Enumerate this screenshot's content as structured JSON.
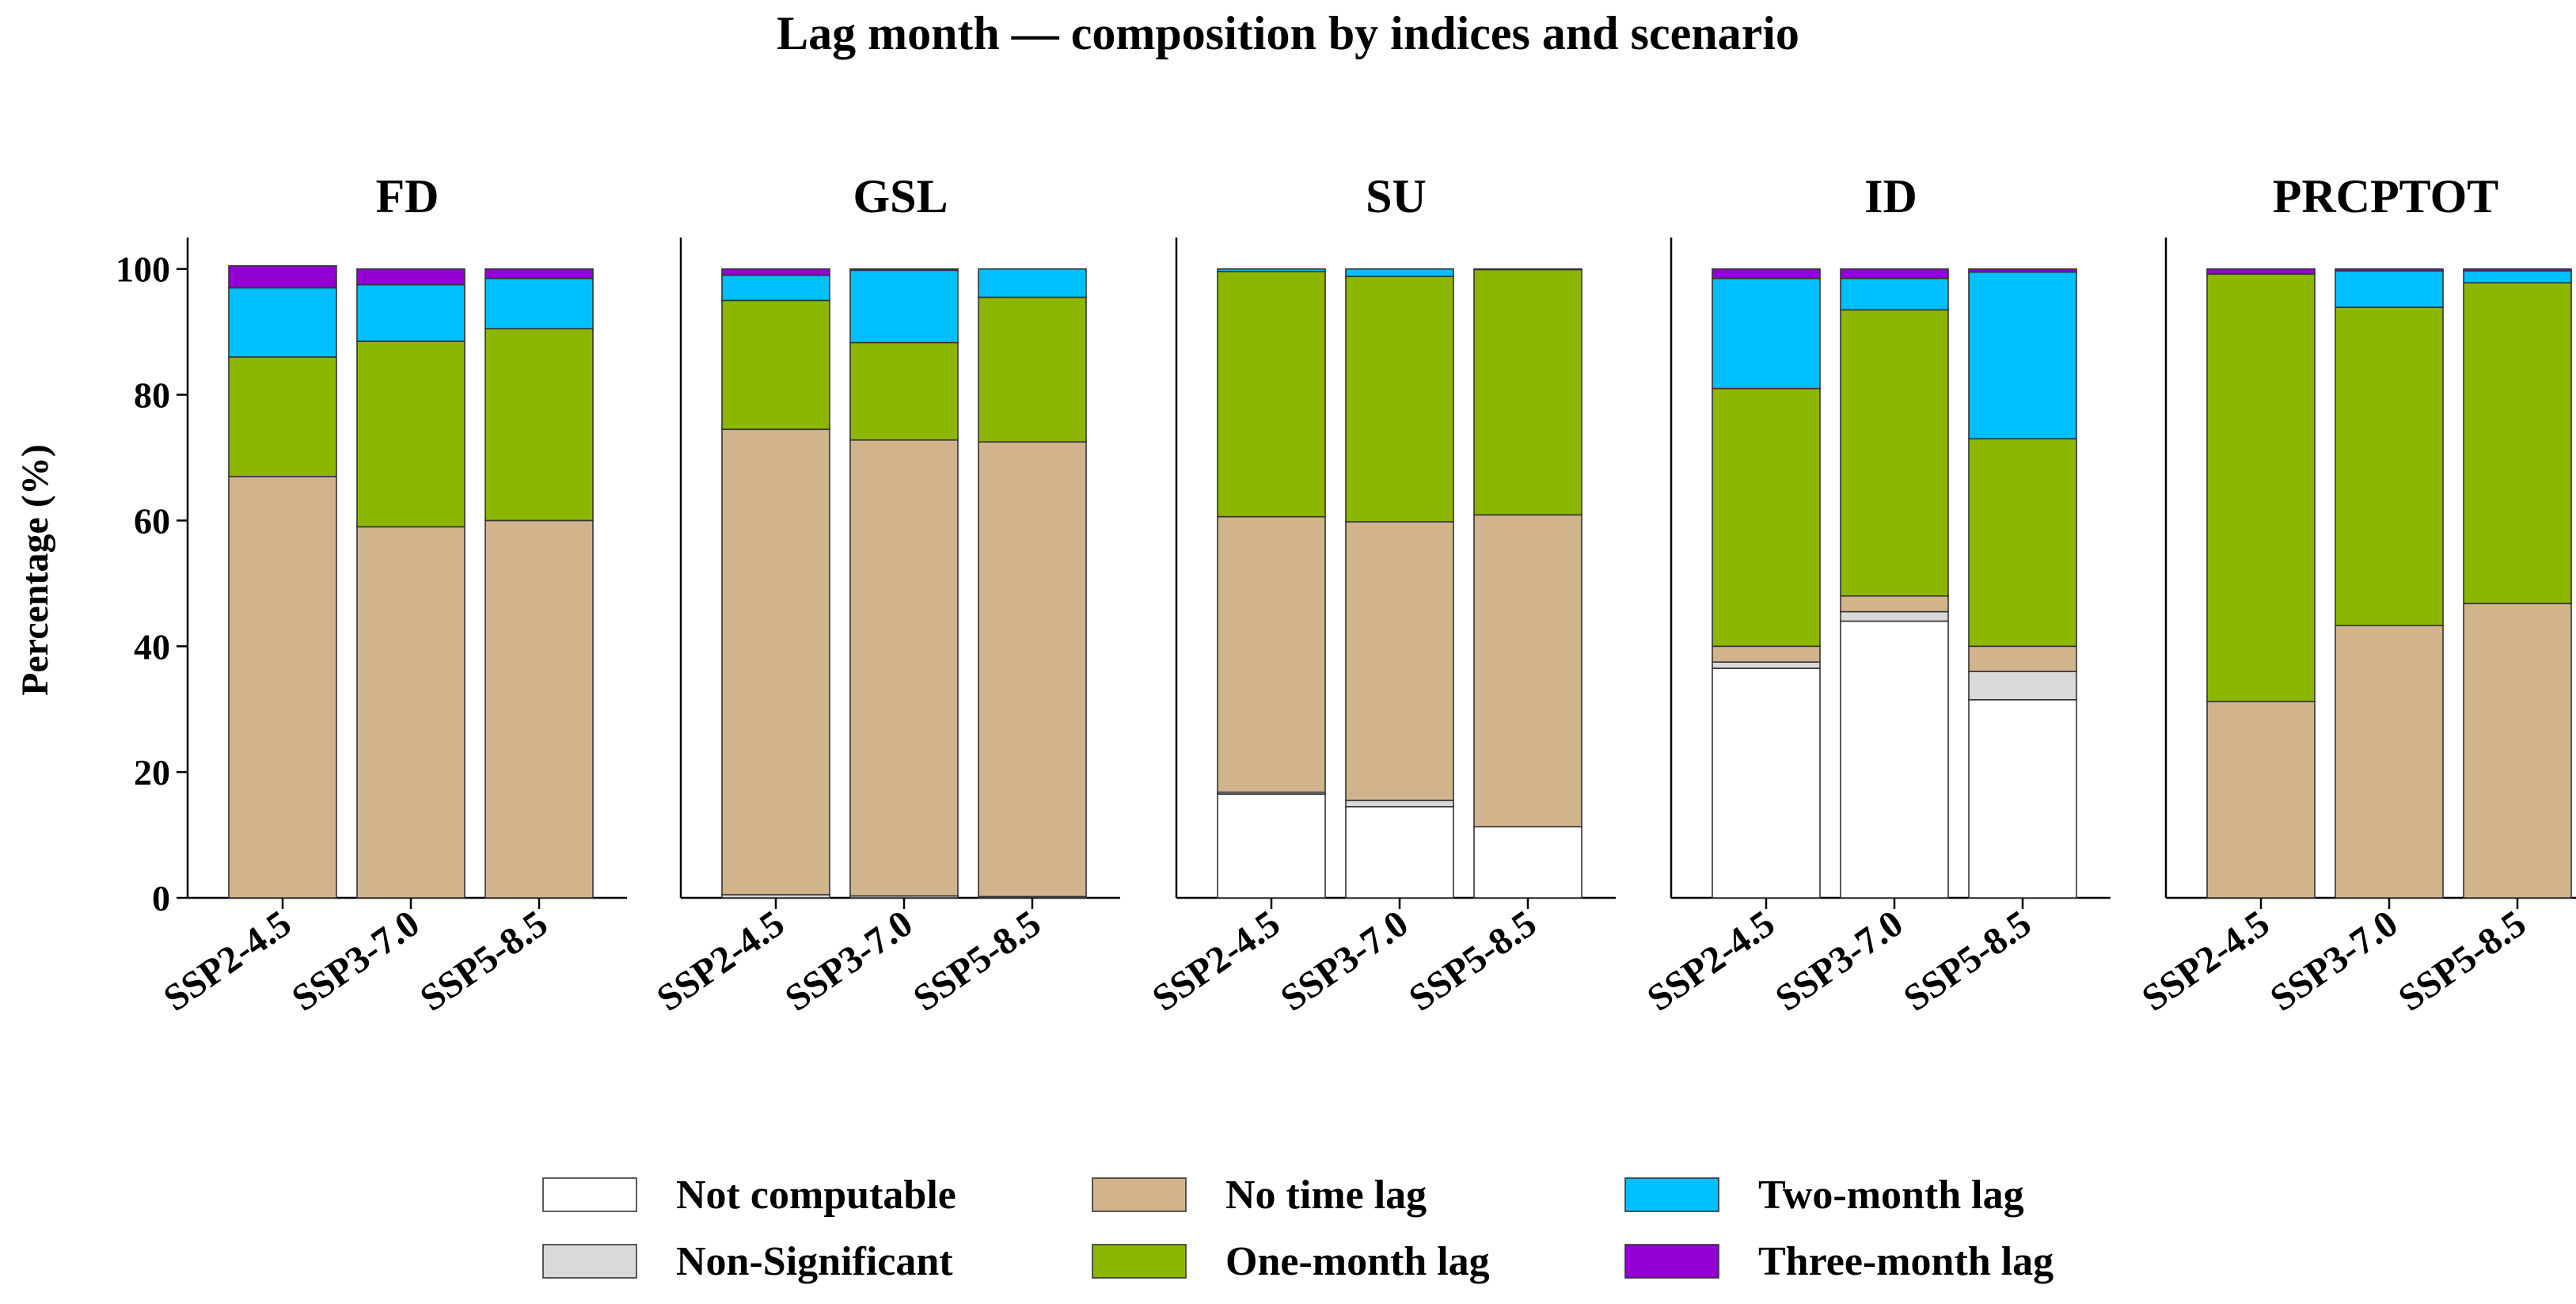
{
  "chart_data": {
    "type": "bar",
    "stacked": true,
    "title": "Lag month — composition by indices and scenario",
    "ylabel": "Percentage (%)",
    "ylim": [
      0,
      105
    ],
    "yticks": [
      0,
      20,
      40,
      60,
      80,
      100
    ],
    "categories": [
      "SSP2-4.5",
      "SSP3-7.0",
      "SSP5-8.5"
    ],
    "categories_rotation_deg": 35,
    "legend_position": "bottom-center",
    "grid": false,
    "series": [
      {
        "name": "Not computable",
        "color": "#ffffff"
      },
      {
        "name": "Non-Significant",
        "color": "#d9d9d9"
      },
      {
        "name": "No time lag",
        "color": "#d2b48c"
      },
      {
        "name": "One-month lag",
        "color": "#8db600"
      },
      {
        "name": "Two-month lag",
        "color": "#00bfff"
      },
      {
        "name": "Three-month lag",
        "color": "#9400d3"
      }
    ],
    "panels": [
      {
        "title": "FD",
        "values": [
          [
            0,
            0,
            67,
            19,
            11,
            3.5
          ],
          [
            0,
            0,
            59,
            29.5,
            9,
            2.5
          ],
          [
            0,
            0,
            60,
            30.5,
            8,
            1.5
          ]
        ]
      },
      {
        "title": "GSL",
        "values": [
          [
            0,
            0.5,
            74,
            20.5,
            4,
            1
          ],
          [
            0,
            0.3,
            72.5,
            15.5,
            11.5,
            0.2
          ],
          [
            0,
            0.2,
            72.3,
            23,
            4.5,
            0
          ]
        ]
      },
      {
        "title": "SU",
        "values": [
          [
            16.5,
            0.3,
            43.8,
            39,
            0.4,
            0
          ],
          [
            14.5,
            1,
            44.3,
            39,
            1.2,
            0
          ],
          [
            11.3,
            0,
            49.6,
            39,
            0.1,
            0
          ]
        ]
      },
      {
        "title": "ID",
        "values": [
          [
            36.5,
            1,
            2.5,
            41,
            17.5,
            1.5
          ],
          [
            44,
            1.5,
            2.5,
            45.5,
            5,
            1.5
          ],
          [
            31.5,
            4.5,
            4,
            33,
            26.5,
            0.5
          ]
        ]
      },
      {
        "title": "PRCPTOT",
        "values": [
          [
            0,
            0,
            31.2,
            68,
            0,
            0.8
          ],
          [
            0,
            0,
            43.3,
            50.6,
            5.8,
            0.3
          ],
          [
            0,
            0,
            46.8,
            51,
            1.9,
            0.3
          ]
        ]
      }
    ]
  }
}
